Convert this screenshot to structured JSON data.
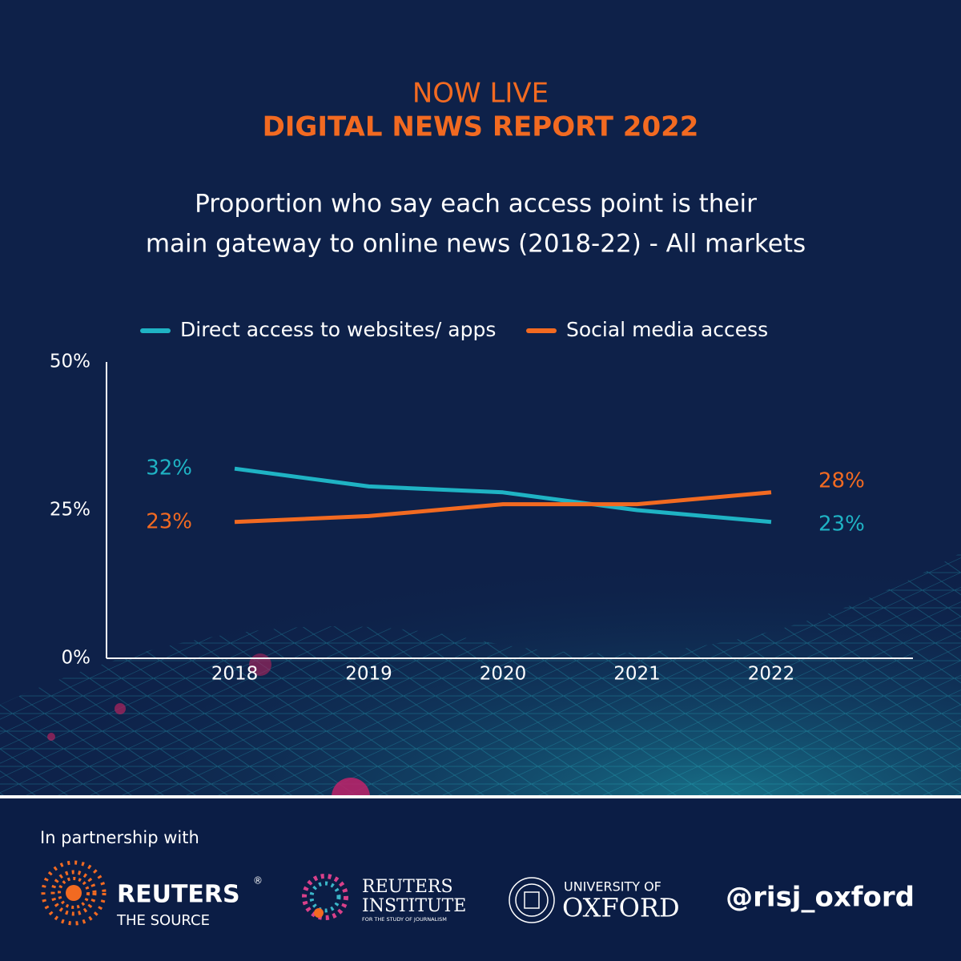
{
  "chart_data": {
    "type": "line",
    "kicker": "NOW LIVE",
    "title": "DIGITAL NEWS REPORT 2022",
    "subtitle": [
      "Proportion who say each access point is their",
      "main gateway to online news (2018-22) - All markets"
    ],
    "categories": [
      "2018",
      "2019",
      "2020",
      "2021",
      "2022"
    ],
    "series": [
      {
        "name": "Direct access to websites/ apps",
        "color": "#1fb3c4",
        "values": [
          32,
          29,
          28,
          25,
          23
        ],
        "value_labels": [
          "32%",
          null,
          null,
          null,
          "23%"
        ]
      },
      {
        "name": "Social media access",
        "color": "#f26a21",
        "values": [
          23,
          24,
          26,
          26,
          28
        ],
        "value_labels": [
          "23%",
          null,
          null,
          null,
          "28%"
        ]
      }
    ],
    "ylim": [
      0,
      50
    ],
    "yticks": [
      {
        "value": 0,
        "label": "0%"
      },
      {
        "value": 25,
        "label": "25%"
      },
      {
        "value": 50,
        "label": "50%"
      }
    ],
    "grid": false,
    "legend": "top"
  },
  "footer": {
    "partnership": "In partnership with",
    "reuters": {
      "name": "REUTERS",
      "mark": "®",
      "tagline": "THE SOURCE"
    },
    "institute": {
      "line1": "REUTERS",
      "line2": "INSTITUTE",
      "tagline": "FOR THE STUDY OF JOURNALISM"
    },
    "oxford": {
      "line1": "UNIVERSITY OF",
      "line2": "OXFORD"
    },
    "handle": "@risj_oxford"
  }
}
